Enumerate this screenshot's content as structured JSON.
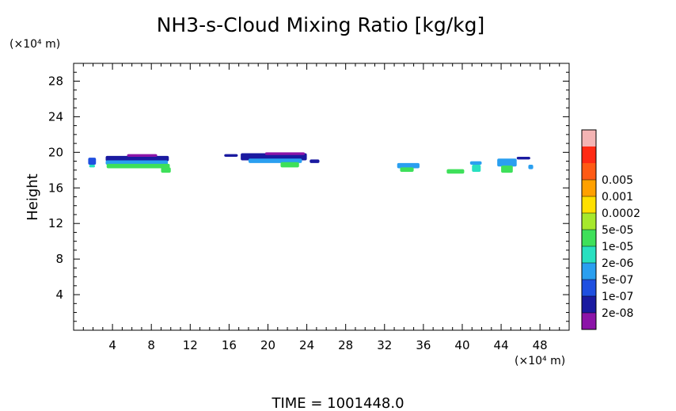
{
  "chart_data": {
    "type": "heatmap",
    "title": "NH3-s-Cloud Mixing Ratio [kg/kg]",
    "xlabel": "",
    "ylabel": "Height",
    "x_unit": "(×10⁴ m)",
    "y_unit": "(×10⁴ m)",
    "xlim": [
      0,
      51
    ],
    "ylim": [
      0,
      30
    ],
    "xticks": [
      "4",
      "8",
      "12",
      "16",
      "20",
      "24",
      "28",
      "32",
      "36",
      "40",
      "44",
      "48"
    ],
    "yticks": [
      "4",
      "8",
      "12",
      "16",
      "20",
      "24",
      "28"
    ],
    "grid": false,
    "footer": "TIME = 1001448.0",
    "colorbar": {
      "labels": [
        "2e-08",
        "1e-07",
        "5e-07",
        "2e-06",
        "1e-05",
        "5e-05",
        "0.0002",
        "0.001",
        "0.005"
      ],
      "colors": [
        "#8c14a8",
        "#1a1aa0",
        "#1f4fe0",
        "#2a9ff0",
        "#28e0c0",
        "#3ee05a",
        "#a6e82c",
        "#ffe000",
        "#ffa000",
        "#ff5a14",
        "#ff2a14",
        "#f4b4b4"
      ]
    },
    "cloud_cells": [
      {
        "x0": 1.5,
        "x1": 2.3,
        "y0": 18.6,
        "y1": 19.4,
        "level": 2
      },
      {
        "x0": 1.6,
        "x1": 2.2,
        "y0": 18.3,
        "y1": 18.6,
        "level": 4
      },
      {
        "x0": 3.3,
        "x1": 9.8,
        "y0": 19.0,
        "y1": 19.6,
        "level": 1
      },
      {
        "x0": 3.3,
        "x1": 9.7,
        "y0": 18.6,
        "y1": 19.1,
        "level": 3
      },
      {
        "x0": 3.4,
        "x1": 9.9,
        "y0": 18.2,
        "y1": 18.7,
        "level": 5
      },
      {
        "x0": 5.5,
        "x1": 8.6,
        "y0": 19.5,
        "y1": 19.8,
        "level": 0
      },
      {
        "x0": 9.0,
        "x1": 10.0,
        "y0": 17.7,
        "y1": 18.3,
        "level": 5
      },
      {
        "x0": 15.5,
        "x1": 16.9,
        "y0": 19.5,
        "y1": 19.8,
        "level": 1
      },
      {
        "x0": 17.2,
        "x1": 24.0,
        "y0": 19.1,
        "y1": 19.9,
        "level": 1
      },
      {
        "x0": 19.7,
        "x1": 23.8,
        "y0": 19.7,
        "y1": 20.0,
        "level": 0
      },
      {
        "x0": 18.0,
        "x1": 23.5,
        "y0": 18.8,
        "y1": 19.3,
        "level": 3
      },
      {
        "x0": 21.3,
        "x1": 23.2,
        "y0": 18.3,
        "y1": 18.9,
        "level": 5
      },
      {
        "x0": 24.3,
        "x1": 25.3,
        "y0": 18.8,
        "y1": 19.2,
        "level": 1
      },
      {
        "x0": 33.3,
        "x1": 35.6,
        "y0": 18.2,
        "y1": 18.8,
        "level": 3
      },
      {
        "x0": 33.6,
        "x1": 35.0,
        "y0": 17.8,
        "y1": 18.3,
        "level": 5
      },
      {
        "x0": 38.4,
        "x1": 40.2,
        "y0": 17.6,
        "y1": 18.1,
        "level": 5
      },
      {
        "x0": 40.8,
        "x1": 42.0,
        "y0": 18.6,
        "y1": 19.0,
        "level": 3
      },
      {
        "x0": 41.0,
        "x1": 41.9,
        "y0": 17.8,
        "y1": 18.6,
        "level": 4
      },
      {
        "x0": 43.6,
        "x1": 45.6,
        "y0": 18.4,
        "y1": 19.3,
        "level": 3
      },
      {
        "x0": 44.0,
        "x1": 45.2,
        "y0": 17.7,
        "y1": 18.5,
        "level": 5
      },
      {
        "x0": 45.6,
        "x1": 47.0,
        "y0": 19.2,
        "y1": 19.5,
        "level": 1
      },
      {
        "x0": 46.8,
        "x1": 47.3,
        "y0": 18.1,
        "y1": 18.6,
        "level": 3
      }
    ]
  }
}
